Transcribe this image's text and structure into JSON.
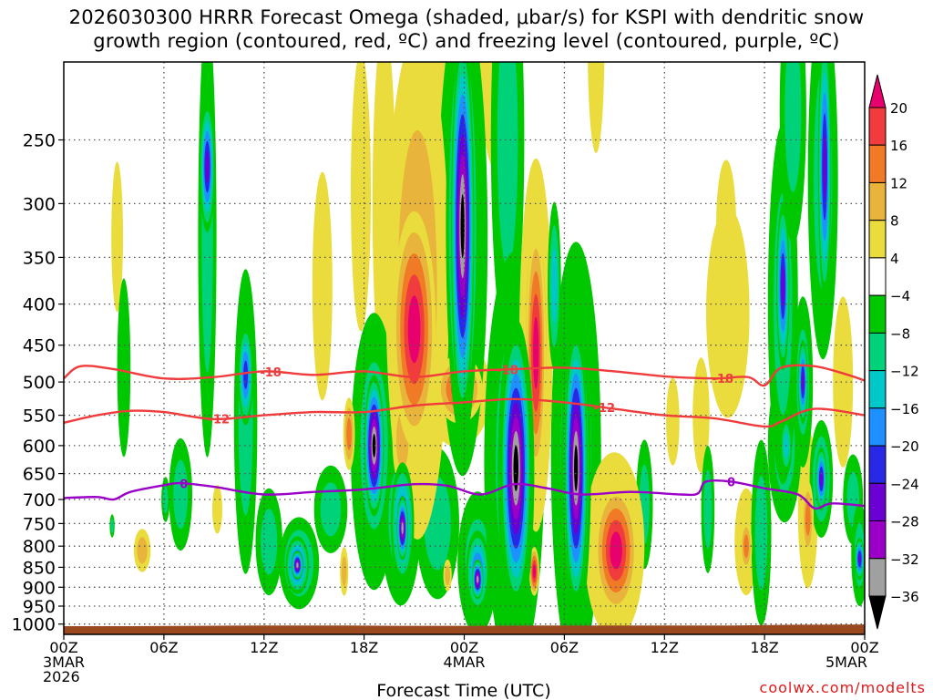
{
  "title": {
    "line1": "2026030300 HRRR Forecast Omega (shaded, μbar/s) for KSPI with dendritic snow",
    "line2": "growth region (contoured, red, ºC) and freezing level (contoured, purple, ºC)"
  },
  "credit": "coolwx.com/modelts",
  "chart_data": {
    "type": "heatmap",
    "title": "2026030300 HRRR Forecast Omega (shaded, μbar/s) for KSPI with dendritic snow growth region (contoured, red, ºC) and freezing level (contoured, purple, ºC)",
    "xlabel": "Forecast Time (UTC)",
    "ylabel": "",
    "x_hours_range": [
      0,
      48
    ],
    "x_ticks": [
      {
        "hour": 0,
        "lines": [
          "00Z",
          "3MAR",
          "2026"
        ]
      },
      {
        "hour": 6,
        "lines": [
          "06Z"
        ]
      },
      {
        "hour": 12,
        "lines": [
          "12Z"
        ]
      },
      {
        "hour": 18,
        "lines": [
          "18Z"
        ]
      },
      {
        "hour": 24,
        "lines": [
          "00Z",
          "4MAR"
        ]
      },
      {
        "hour": 30,
        "lines": [
          "06Z"
        ]
      },
      {
        "hour": 36,
        "lines": [
          "12Z"
        ]
      },
      {
        "hour": 42,
        "lines": [
          "18Z"
        ]
      },
      {
        "hour": 48,
        "lines": [
          "00Z",
          "5MAR"
        ]
      }
    ],
    "y_pressure_range_hpa": [
      200,
      1030
    ],
    "y_ticks": [
      250,
      300,
      350,
      400,
      450,
      500,
      550,
      600,
      650,
      700,
      750,
      800,
      850,
      900,
      950,
      1000
    ],
    "colorbar": {
      "labels": [
        "20",
        "16",
        "12",
        "8",
        "4",
        "−4",
        "−8",
        "−12",
        "−16",
        "−20",
        "−24",
        "−28",
        "−32",
        "−36"
      ],
      "colors": [
        "#e8006e",
        "#f03c3c",
        "#f07a25",
        "#e8b43c",
        "#eadc3c",
        "#ffffff",
        "#00c800",
        "#00d27a",
        "#00c8c8",
        "#1e90ff",
        "#2828e6",
        "#6a00d2",
        "#9b00c8",
        "#a0a0a0",
        "#000000"
      ]
    },
    "blobs": [
      {
        "t": 8.6,
        "p": 270,
        "rt": 0.45,
        "rp": 50,
        "v": -24
      },
      {
        "t": 8.6,
        "p": 330,
        "rt": 0.55,
        "rp": 200,
        "v": -10
      },
      {
        "t": 10.9,
        "p": 490,
        "rt": 0.45,
        "rp": 70,
        "v": -22
      },
      {
        "t": 10.9,
        "p": 560,
        "rt": 0.7,
        "rp": 230,
        "v": -10
      },
      {
        "t": 3.6,
        "p": 480,
        "rt": 0.4,
        "rp": 120,
        "v": -6
      },
      {
        "t": 3.2,
        "p": 330,
        "rt": 0.35,
        "rp": 70,
        "v": 5
      },
      {
        "t": 4.7,
        "p": 810,
        "rt": 0.5,
        "rp": 50,
        "v": 9
      },
      {
        "t": 7.0,
        "p": 690,
        "rt": 0.7,
        "rp": 110,
        "v": -8
      },
      {
        "t": 14.1,
        "p": 840,
        "rt": 1.2,
        "rp": 110,
        "v": -14
      },
      {
        "t": 14.0,
        "p": 845,
        "rt": 0.35,
        "rp": 35,
        "v": -33
      },
      {
        "t": 14.0,
        "p": 845,
        "rt": 0.7,
        "rp": 70,
        "v": -24
      },
      {
        "t": 12.3,
        "p": 790,
        "rt": 0.8,
        "rp": 120,
        "v": -8
      },
      {
        "t": 16.8,
        "p": 860,
        "rt": 0.25,
        "rp": 60,
        "v": 10
      },
      {
        "t": 16.0,
        "p": 720,
        "rt": 1.0,
        "rp": 90,
        "v": -8
      },
      {
        "t": 15.5,
        "p": 380,
        "rt": 0.6,
        "rp": 120,
        "v": 6
      },
      {
        "t": 18.6,
        "p": 600,
        "rt": 0.6,
        "rp": 120,
        "v": -40
      },
      {
        "t": 18.6,
        "p": 600,
        "rt": 1.0,
        "rp": 170,
        "v": -22
      },
      {
        "t": 18.6,
        "p": 610,
        "rt": 1.4,
        "rp": 230,
        "v": -8
      },
      {
        "t": 17.1,
        "p": 580,
        "rt": 0.35,
        "rp": 60,
        "v": 15
      },
      {
        "t": 20.3,
        "p": 760,
        "rt": 0.35,
        "rp": 70,
        "v": -35
      },
      {
        "t": 20.3,
        "p": 750,
        "rt": 0.7,
        "rp": 130,
        "v": -22
      },
      {
        "t": 20.2,
        "p": 740,
        "rt": 1.2,
        "rp": 180,
        "v": -8
      },
      {
        "t": 17.8,
        "p": 290,
        "rt": 0.6,
        "rp": 110,
        "v": 6
      },
      {
        "t": 19.2,
        "p": 300,
        "rt": 0.7,
        "rp": 140,
        "v": 7
      },
      {
        "t": 21.0,
        "p": 430,
        "rt": 1.3,
        "rp": 140,
        "v": 21
      },
      {
        "t": 21.2,
        "p": 380,
        "rt": 1.9,
        "rp": 260,
        "v": 9
      },
      {
        "t": 20.3,
        "p": 590,
        "rt": 0.6,
        "rp": 80,
        "v": 9
      },
      {
        "t": 22.4,
        "p": 750,
        "rt": 1.3,
        "rp": 160,
        "v": -8
      },
      {
        "t": 23.9,
        "p": 320,
        "rt": 0.7,
        "rp": 160,
        "v": -40
      },
      {
        "t": 23.9,
        "p": 320,
        "rt": 1.0,
        "rp": 200,
        "v": -22
      },
      {
        "t": 23.9,
        "p": 330,
        "rt": 1.5,
        "rp": 260,
        "v": -8
      },
      {
        "t": 22.8,
        "p": 200,
        "rt": 0.8,
        "rp": 120,
        "v": 7
      },
      {
        "t": 25.9,
        "p": 190,
        "rt": 1.0,
        "rp": 120,
        "v": 7
      },
      {
        "t": 26.6,
        "p": 250,
        "rt": 1.0,
        "rp": 240,
        "v": -8
      },
      {
        "t": 23.7,
        "p": 510,
        "rt": 1.4,
        "rp": 50,
        "v": 17
      },
      {
        "t": 23.6,
        "p": 515,
        "rt": 2.0,
        "rp": 80,
        "v": 6
      },
      {
        "t": 24.8,
        "p": 880,
        "rt": 0.35,
        "rp": 50,
        "v": -35
      },
      {
        "t": 24.8,
        "p": 860,
        "rt": 0.7,
        "rp": 100,
        "v": -22
      },
      {
        "t": 24.8,
        "p": 840,
        "rt": 1.2,
        "rp": 170,
        "v": -8
      },
      {
        "t": 23.0,
        "p": 870,
        "rt": 0.25,
        "rp": 40,
        "v": 10
      },
      {
        "t": 27.1,
        "p": 640,
        "rt": 0.9,
        "rp": 240,
        "v": -40
      },
      {
        "t": 27.1,
        "p": 650,
        "rt": 1.1,
        "rp": 270,
        "v": -22
      },
      {
        "t": 27.0,
        "p": 630,
        "rt": 1.8,
        "rp": 340,
        "v": -8
      },
      {
        "t": 27.7,
        "p": 420,
        "rt": 0.8,
        "rp": 90,
        "v": 7
      },
      {
        "t": 28.3,
        "p": 460,
        "rt": 0.6,
        "rp": 160,
        "v": 21
      },
      {
        "t": 28.3,
        "p": 450,
        "rt": 1.0,
        "rp": 220,
        "v": 9
      },
      {
        "t": 28.2,
        "p": 860,
        "rt": 0.3,
        "rp": 60,
        "v": 21
      },
      {
        "t": 30.7,
        "p": 640,
        "rt": 0.7,
        "rp": 240,
        "v": -40
      },
      {
        "t": 30.7,
        "p": 640,
        "rt": 0.9,
        "rp": 280,
        "v": -22
      },
      {
        "t": 30.7,
        "p": 620,
        "rt": 1.5,
        "rp": 340,
        "v": -8
      },
      {
        "t": 29.4,
        "p": 380,
        "rt": 0.4,
        "rp": 90,
        "v": -14
      },
      {
        "t": 31.9,
        "p": 190,
        "rt": 0.5,
        "rp": 90,
        "v": 6
      },
      {
        "t": 33.1,
        "p": 810,
        "rt": 1.3,
        "rp": 150,
        "v": 21
      },
      {
        "t": 33.0,
        "p": 800,
        "rt": 1.8,
        "rp": 210,
        "v": 9
      },
      {
        "t": 34.8,
        "p": 710,
        "rt": 0.5,
        "rp": 130,
        "v": -8
      },
      {
        "t": 39.7,
        "p": 320,
        "rt": 0.6,
        "rp": 60,
        "v": 5
      },
      {
        "t": 39.8,
        "p": 410,
        "rt": 1.3,
        "rp": 120,
        "v": 5
      },
      {
        "t": 38.2,
        "p": 550,
        "rt": 0.5,
        "rp": 90,
        "v": 6
      },
      {
        "t": 38.6,
        "p": 720,
        "rt": 0.4,
        "rp": 130,
        "v": -8
      },
      {
        "t": 40.9,
        "p": 800,
        "rt": 0.35,
        "rp": 60,
        "v": 14
      },
      {
        "t": 40.9,
        "p": 790,
        "rt": 0.7,
        "rp": 120,
        "v": 5
      },
      {
        "t": 41.8,
        "p": 770,
        "rt": 0.6,
        "rp": 200,
        "v": -8
      },
      {
        "t": 43.3,
        "p": 600,
        "rt": 0.35,
        "rp": 50,
        "v": -12
      },
      {
        "t": 43.2,
        "p": 600,
        "rt": 1.0,
        "rp": 130,
        "v": -8
      },
      {
        "t": 43.1,
        "p": 380,
        "rt": 0.4,
        "rp": 90,
        "v": -26
      },
      {
        "t": 43.1,
        "p": 400,
        "rt": 0.9,
        "rp": 190,
        "v": -8
      },
      {
        "t": 43.7,
        "p": 230,
        "rt": 0.8,
        "rp": 90,
        "v": -8
      },
      {
        "t": 44.6,
        "p": 740,
        "rt": 0.35,
        "rp": 80,
        "v": 14
      },
      {
        "t": 44.6,
        "p": 720,
        "rt": 0.6,
        "rp": 160,
        "v": 6
      },
      {
        "t": 44.3,
        "p": 500,
        "rt": 0.3,
        "rp": 60,
        "v": -24
      },
      {
        "t": 44.3,
        "p": 500,
        "rt": 0.6,
        "rp": 120,
        "v": -8
      },
      {
        "t": 45.4,
        "p": 660,
        "rt": 0.35,
        "rp": 60,
        "v": -24
      },
      {
        "t": 45.4,
        "p": 660,
        "rt": 0.7,
        "rp": 110,
        "v": -12
      },
      {
        "t": 45.6,
        "p": 270,
        "rt": 0.4,
        "rp": 100,
        "v": -24
      },
      {
        "t": 45.5,
        "p": 280,
        "rt": 0.9,
        "rp": 140,
        "v": -8
      },
      {
        "t": 46.7,
        "p": 500,
        "rt": 0.6,
        "rp": 120,
        "v": 5
      },
      {
        "t": 47.3,
        "p": 700,
        "rt": 0.6,
        "rp": 90,
        "v": -8
      },
      {
        "t": 47.7,
        "p": 830,
        "rt": 0.3,
        "rp": 50,
        "v": -24
      },
      {
        "t": 47.7,
        "p": 820,
        "rt": 0.5,
        "rp": 120,
        "v": -8
      },
      {
        "t": 36.5,
        "p": 560,
        "rt": 0.4,
        "rp": 70,
        "v": 5
      },
      {
        "t": 9.2,
        "p": 720,
        "rt": 0.3,
        "rp": 50,
        "v": 5
      },
      {
        "t": 2.9,
        "p": 755,
        "rt": 0.15,
        "rp": 25,
        "v": -8
      },
      {
        "t": 6.1,
        "p": 700,
        "rt": 0.25,
        "rp": 45,
        "v": -8
      }
    ],
    "ground_pressure_hpa": [
      1006,
      1006,
      1005,
      1004,
      1004,
      1005,
      1005,
      1004,
      1004,
      1004,
      1004,
      1002,
      1001
    ],
    "contours": [
      {
        "name": "-18C",
        "color": "#f03c3c",
        "label": "-18",
        "label_hours": [
          12.4,
          26.6,
          39.5
        ],
        "points": [
          [
            0,
            495
          ],
          [
            1,
            478
          ],
          [
            3,
            482
          ],
          [
            6,
            495
          ],
          [
            9,
            493
          ],
          [
            12,
            485
          ],
          [
            15,
            490
          ],
          [
            18,
            485
          ],
          [
            21,
            493
          ],
          [
            24,
            485
          ],
          [
            27,
            482
          ],
          [
            30,
            480
          ],
          [
            33,
            485
          ],
          [
            36,
            492
          ],
          [
            39,
            495
          ],
          [
            41,
            493
          ],
          [
            42,
            505
          ],
          [
            43,
            480
          ],
          [
            45,
            478
          ],
          [
            47,
            490
          ],
          [
            48,
            498
          ]
        ]
      },
      {
        "name": "-12C",
        "color": "#f03c3c",
        "label": "-12",
        "label_hours": [
          9.3,
          32.4
        ],
        "points": [
          [
            0,
            562
          ],
          [
            2,
            550
          ],
          [
            4,
            543
          ],
          [
            6,
            545
          ],
          [
            9,
            556
          ],
          [
            12,
            550
          ],
          [
            15,
            545
          ],
          [
            18,
            545
          ],
          [
            21,
            535
          ],
          [
            24,
            530
          ],
          [
            27,
            525
          ],
          [
            30,
            530
          ],
          [
            33,
            540
          ],
          [
            36,
            550
          ],
          [
            39,
            555
          ],
          [
            42,
            568
          ],
          [
            43,
            560
          ],
          [
            45,
            540
          ],
          [
            48,
            550
          ]
        ]
      },
      {
        "name": "0C",
        "color": "#9b00c8",
        "label": "0",
        "label_hours": [
          7.2,
          40.0
        ],
        "points": [
          [
            0,
            697
          ],
          [
            2,
            695
          ],
          [
            3,
            700
          ],
          [
            4,
            685
          ],
          [
            6,
            672
          ],
          [
            7,
            668
          ],
          [
            9,
            675
          ],
          [
            12,
            690
          ],
          [
            15,
            685
          ],
          [
            18,
            680
          ],
          [
            21,
            670
          ],
          [
            23,
            673
          ],
          [
            25,
            690
          ],
          [
            27,
            670
          ],
          [
            29,
            678
          ],
          [
            31,
            690
          ],
          [
            34,
            685
          ],
          [
            37,
            690
          ],
          [
            38,
            688
          ],
          [
            38.5,
            665
          ],
          [
            40,
            665
          ],
          [
            42,
            678
          ],
          [
            44,
            690
          ],
          [
            45,
            718
          ],
          [
            46,
            708
          ],
          [
            48,
            713
          ]
        ]
      }
    ]
  }
}
